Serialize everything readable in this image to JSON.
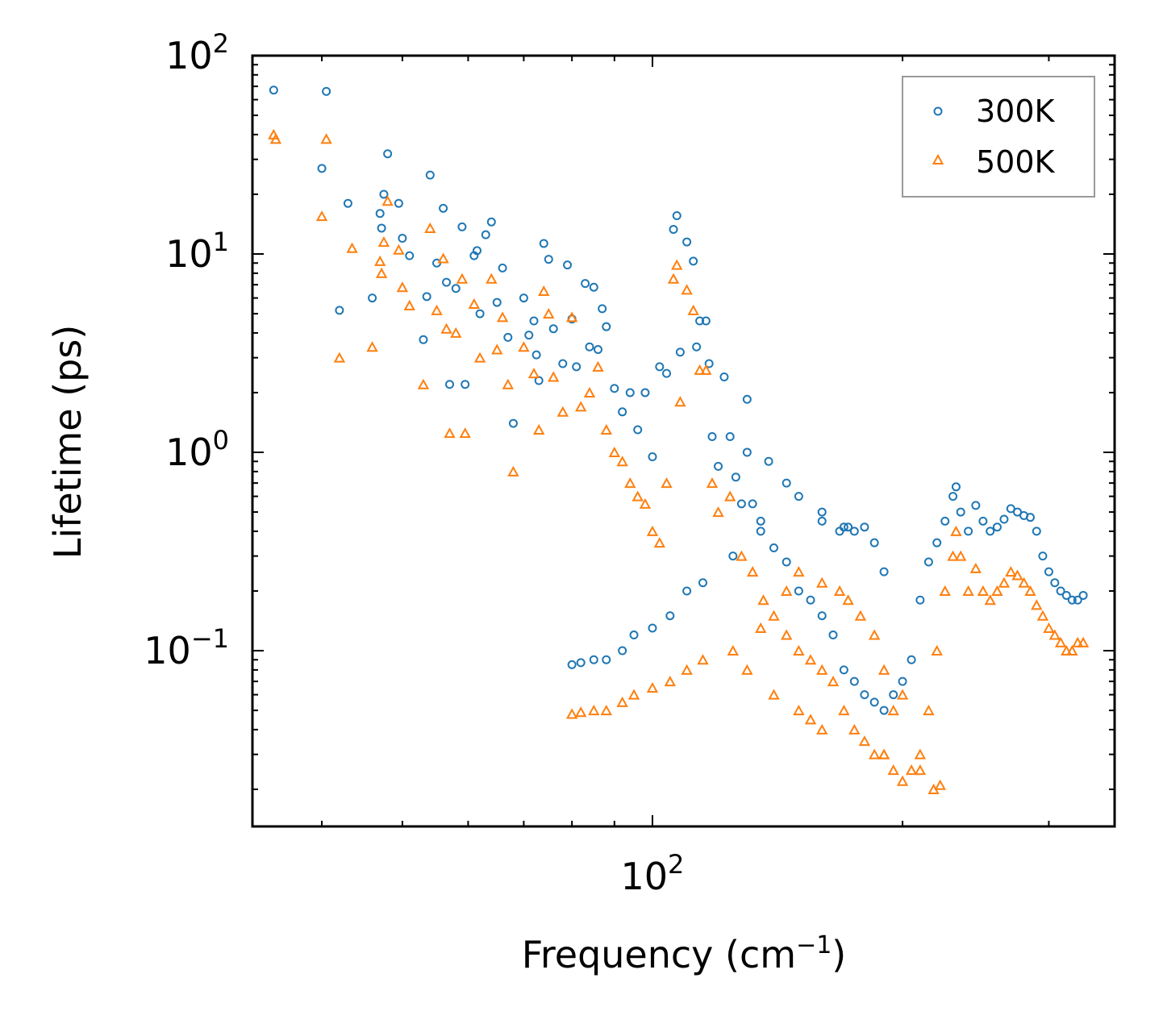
{
  "chart_data": {
    "type": "scatter",
    "x_scale": "log",
    "y_scale": "log",
    "xlabel": "Frequency (cm",
    "xlabel_sup": "−1",
    "xlabel_end": ")",
    "ylabel": "Lifetime (ps)",
    "xlim": [
      33,
      360
    ],
    "ylim": [
      0.013,
      100
    ],
    "x_major_ticks": [
      {
        "value": 100,
        "base": "10",
        "exp": "2"
      }
    ],
    "y_major_ticks": [
      {
        "value": 0.1,
        "base": "10",
        "exp": "−1"
      },
      {
        "value": 1,
        "base": "10",
        "exp": "0"
      },
      {
        "value": 10,
        "base": "10",
        "exp": "1"
      },
      {
        "value": 100,
        "base": "10",
        "exp": "2"
      }
    ],
    "legend_position": "top-right",
    "series": [
      {
        "name": "300K",
        "color": "#1f77b4",
        "marker": "circle-open",
        "points": [
          [
            35,
            67
          ],
          [
            40,
            27
          ],
          [
            40.5,
            66
          ],
          [
            42,
            5.2
          ],
          [
            43,
            18
          ],
          [
            46,
            6
          ],
          [
            47,
            16
          ],
          [
            47.2,
            13.5
          ],
          [
            47.5,
            20
          ],
          [
            48,
            32
          ],
          [
            49.5,
            18
          ],
          [
            50,
            12
          ],
          [
            51,
            9.8
          ],
          [
            53,
            3.7
          ],
          [
            53.5,
            6.1
          ],
          [
            54,
            25
          ],
          [
            55,
            9
          ],
          [
            56,
            17
          ],
          [
            56.5,
            7.2
          ],
          [
            57,
            2.2
          ],
          [
            58,
            6.7
          ],
          [
            59,
            13.7
          ],
          [
            59.5,
            2.2
          ],
          [
            61,
            9.8
          ],
          [
            61.5,
            10.4
          ],
          [
            62,
            5
          ],
          [
            64,
            14.5
          ],
          [
            63,
            12.5
          ],
          [
            65,
            5.7
          ],
          [
            66,
            8.5
          ],
          [
            67,
            3.8
          ],
          [
            68,
            1.4
          ],
          [
            70,
            6
          ],
          [
            71,
            3.9
          ],
          [
            72,
            4.6
          ],
          [
            72.5,
            3.1
          ],
          [
            73,
            2.3
          ],
          [
            74,
            11.3
          ],
          [
            75,
            9.4
          ],
          [
            76,
            4.2
          ],
          [
            78,
            2.8
          ],
          [
            79,
            8.8
          ],
          [
            80,
            4.7
          ],
          [
            81,
            2.7
          ],
          [
            83,
            7.1
          ],
          [
            84,
            3.4
          ],
          [
            85,
            6.8
          ],
          [
            86,
            3.3
          ],
          [
            87,
            5.3
          ],
          [
            88,
            4.3
          ],
          [
            90,
            2.1
          ],
          [
            92,
            1.6
          ],
          [
            94,
            2.0
          ],
          [
            96,
            1.3
          ],
          [
            98,
            2.0
          ],
          [
            100,
            0.95
          ],
          [
            102,
            2.7
          ],
          [
            104,
            2.5
          ],
          [
            106,
            13.3
          ],
          [
            107,
            15.6
          ],
          [
            108,
            3.2
          ],
          [
            110,
            11.5
          ],
          [
            112,
            9.2
          ],
          [
            113,
            3.4
          ],
          [
            114,
            4.6
          ],
          [
            116,
            4.6
          ],
          [
            117,
            2.8
          ],
          [
            118,
            1.2
          ],
          [
            120,
            0.85
          ],
          [
            122,
            2.4
          ],
          [
            124,
            1.2
          ],
          [
            126,
            0.75
          ],
          [
            128,
            0.55
          ],
          [
            130,
            1.85
          ],
          [
            132,
            0.55
          ],
          [
            135,
            0.45
          ],
          [
            140,
            0.33
          ],
          [
            145,
            0.28
          ],
          [
            150,
            0.2
          ],
          [
            155,
            0.18
          ],
          [
            160,
            0.15
          ],
          [
            165,
            0.12
          ],
          [
            170,
            0.08
          ],
          [
            175,
            0.07
          ],
          [
            180,
            0.06
          ],
          [
            185,
            0.055
          ],
          [
            190,
            0.05
          ],
          [
            195,
            0.06
          ],
          [
            200,
            0.07
          ],
          [
            205,
            0.09
          ],
          [
            210,
            0.18
          ],
          [
            215,
            0.28
          ],
          [
            220,
            0.35
          ],
          [
            225,
            0.45
          ],
          [
            230,
            0.6
          ],
          [
            232,
            0.67
          ],
          [
            235,
            0.5
          ],
          [
            240,
            0.4
          ],
          [
            245,
            0.54
          ],
          [
            250,
            0.45
          ],
          [
            255,
            0.4
          ],
          [
            260,
            0.42
          ],
          [
            265,
            0.46
          ],
          [
            270,
            0.52
          ],
          [
            275,
            0.5
          ],
          [
            280,
            0.48
          ],
          [
            285,
            0.47
          ],
          [
            290,
            0.4
          ],
          [
            295,
            0.3
          ],
          [
            300,
            0.25
          ],
          [
            305,
            0.22
          ],
          [
            310,
            0.2
          ],
          [
            315,
            0.19
          ],
          [
            320,
            0.18
          ],
          [
            325,
            0.18
          ],
          [
            330,
            0.19
          ],
          [
            80,
            0.085
          ],
          [
            82,
            0.087
          ],
          [
            85,
            0.09
          ],
          [
            88,
            0.09
          ],
          [
            92,
            0.1
          ],
          [
            95,
            0.12
          ],
          [
            100,
            0.13
          ],
          [
            105,
            0.15
          ],
          [
            110,
            0.2
          ],
          [
            115,
            0.22
          ],
          [
            125,
            0.3
          ],
          [
            135,
            0.4
          ],
          [
            150,
            0.6
          ],
          [
            160,
            0.45
          ],
          [
            170,
            0.42
          ],
          [
            175,
            0.4
          ],
          [
            180,
            0.42
          ],
          [
            185,
            0.35
          ],
          [
            190,
            0.25
          ],
          [
            168,
            0.4
          ],
          [
            172,
            0.42
          ],
          [
            160,
            0.5
          ],
          [
            145,
            0.7
          ],
          [
            138,
            0.9
          ],
          [
            130,
            1.0
          ]
        ]
      },
      {
        "name": "500K",
        "color": "#ff7f0e",
        "marker": "triangle-open",
        "points": [
          [
            35,
            40
          ],
          [
            35.2,
            38
          ],
          [
            40,
            15.5
          ],
          [
            40.5,
            38
          ],
          [
            42,
            3.0
          ],
          [
            43.5,
            10.7
          ],
          [
            46,
            3.4
          ],
          [
            47,
            9.2
          ],
          [
            47.2,
            8
          ],
          [
            47.5,
            11.5
          ],
          [
            48,
            18.5
          ],
          [
            49.5,
            10.5
          ],
          [
            50,
            6.8
          ],
          [
            51,
            5.5
          ],
          [
            53,
            2.2
          ],
          [
            54,
            13.5
          ],
          [
            55,
            5.2
          ],
          [
            56,
            9.5
          ],
          [
            56.5,
            4.2
          ],
          [
            57,
            1.25
          ],
          [
            58,
            4.0
          ],
          [
            59,
            7.5
          ],
          [
            59.5,
            1.25
          ],
          [
            61,
            5.6
          ],
          [
            62,
            3.0
          ],
          [
            64,
            7.5
          ],
          [
            65,
            3.3
          ],
          [
            66,
            4.8
          ],
          [
            67,
            2.2
          ],
          [
            68,
            0.8
          ],
          [
            70,
            3.4
          ],
          [
            72,
            2.5
          ],
          [
            73,
            1.3
          ],
          [
            74,
            6.5
          ],
          [
            75,
            5.0
          ],
          [
            76,
            2.4
          ],
          [
            78,
            1.6
          ],
          [
            80,
            4.8
          ],
          [
            82,
            1.7
          ],
          [
            84,
            2.0
          ],
          [
            86,
            2.7
          ],
          [
            88,
            1.3
          ],
          [
            90,
            1.0
          ],
          [
            92,
            0.9
          ],
          [
            94,
            0.7
          ],
          [
            96,
            0.6
          ],
          [
            98,
            0.55
          ],
          [
            100,
            0.4
          ],
          [
            102,
            0.35
          ],
          [
            104,
            0.7
          ],
          [
            106,
            7.5
          ],
          [
            107,
            8.8
          ],
          [
            108,
            1.8
          ],
          [
            110,
            6.6
          ],
          [
            112,
            5.2
          ],
          [
            114,
            2.6
          ],
          [
            116,
            2.6
          ],
          [
            118,
            0.7
          ],
          [
            120,
            0.5
          ],
          [
            124,
            0.6
          ],
          [
            128,
            0.3
          ],
          [
            132,
            0.25
          ],
          [
            136,
            0.18
          ],
          [
            140,
            0.15
          ],
          [
            145,
            0.12
          ],
          [
            150,
            0.1
          ],
          [
            155,
            0.09
          ],
          [
            160,
            0.08
          ],
          [
            165,
            0.07
          ],
          [
            170,
            0.05
          ],
          [
            175,
            0.04
          ],
          [
            180,
            0.035
          ],
          [
            185,
            0.03
          ],
          [
            190,
            0.03
          ],
          [
            195,
            0.025
          ],
          [
            200,
            0.022
          ],
          [
            205,
            0.025
          ],
          [
            210,
            0.03
          ],
          [
            215,
            0.05
          ],
          [
            220,
            0.1
          ],
          [
            225,
            0.2
          ],
          [
            230,
            0.3
          ],
          [
            232,
            0.4
          ],
          [
            235,
            0.3
          ],
          [
            240,
            0.2
          ],
          [
            245,
            0.26
          ],
          [
            250,
            0.2
          ],
          [
            255,
            0.18
          ],
          [
            260,
            0.2
          ],
          [
            265,
            0.22
          ],
          [
            270,
            0.25
          ],
          [
            275,
            0.24
          ],
          [
            280,
            0.22
          ],
          [
            285,
            0.2
          ],
          [
            290,
            0.17
          ],
          [
            295,
            0.15
          ],
          [
            300,
            0.13
          ],
          [
            305,
            0.12
          ],
          [
            310,
            0.11
          ],
          [
            315,
            0.1
          ],
          [
            320,
            0.1
          ],
          [
            325,
            0.11
          ],
          [
            330,
            0.11
          ],
          [
            80,
            0.048
          ],
          [
            82,
            0.049
          ],
          [
            85,
            0.05
          ],
          [
            88,
            0.05
          ],
          [
            92,
            0.055
          ],
          [
            95,
            0.06
          ],
          [
            100,
            0.065
          ],
          [
            105,
            0.07
          ],
          [
            110,
            0.08
          ],
          [
            115,
            0.09
          ],
          [
            125,
            0.1
          ],
          [
            135,
            0.13
          ],
          [
            145,
            0.2
          ],
          [
            150,
            0.25
          ],
          [
            160,
            0.22
          ],
          [
            168,
            0.2
          ],
          [
            172,
            0.18
          ],
          [
            178,
            0.15
          ],
          [
            185,
            0.12
          ],
          [
            190,
            0.08
          ],
          [
            195,
            0.05
          ],
          [
            200,
            0.06
          ],
          [
            210,
            0.025
          ],
          [
            218,
            0.02
          ],
          [
            222,
            0.021
          ],
          [
            190,
            0.03
          ],
          [
            160,
            0.04
          ],
          [
            155,
            0.045
          ],
          [
            150,
            0.05
          ],
          [
            140,
            0.06
          ],
          [
            130,
            0.08
          ]
        ]
      }
    ]
  }
}
